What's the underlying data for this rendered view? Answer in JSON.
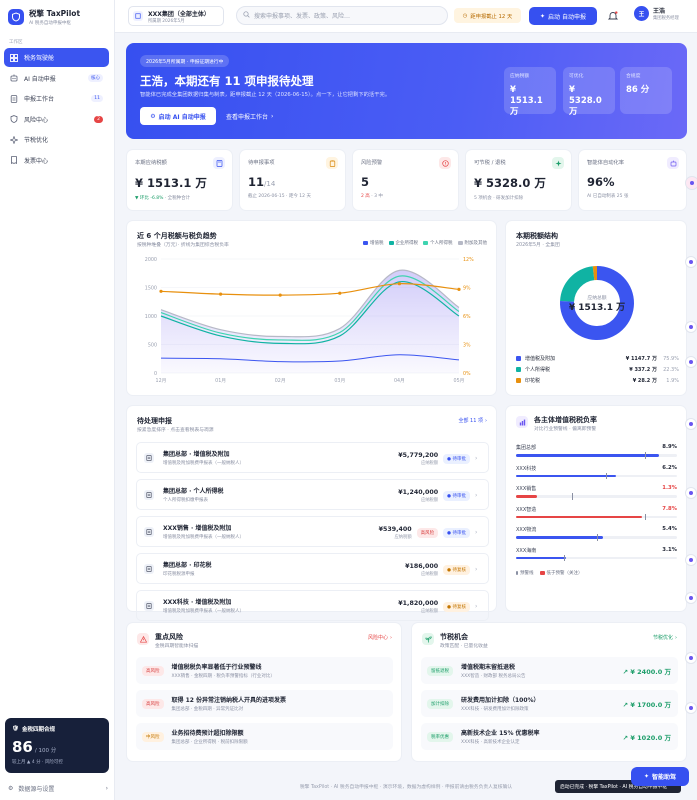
{
  "brand": {
    "name": "税擎 TaxPilot",
    "subtitle": "AI 税务自动申报中枢"
  },
  "sidebar": {
    "section_label": "工作区",
    "items": [
      {
        "label": "税务驾驶舱",
        "badge": ""
      },
      {
        "label": "AI 自动申报",
        "badge": "核心"
      },
      {
        "label": "申报工作台",
        "badge": "11"
      },
      {
        "label": "风险中心",
        "badge": "2"
      },
      {
        "label": "节税优化",
        "badge": ""
      },
      {
        "label": "发票中心",
        "badge": ""
      }
    ],
    "score_card": {
      "title": "金税四期合规",
      "value": "86",
      "unit": "/ 100 分",
      "sub": "较上月 ▲ 4 分 · 风险可控"
    },
    "footer_label": "数据源与设置"
  },
  "topbar": {
    "entity_name": "XXX集团（全部主体）",
    "entity_sub": "所属期 2026年5月",
    "search_placeholder": "搜索申报事项、发票、政策、风险…",
    "deadline": "距申报截止 12 天",
    "auto_button": "启动 自动申报",
    "user_name": "王浩",
    "user_role": "集团税务经理",
    "user_initial": "王"
  },
  "hero": {
    "tag": "2026年5月所属期 · 申报征期进行中",
    "title": "王浩，本期还有 11 项申报待处理",
    "desc": "智能体已完成全集团数据归集与制表，距申报截止 12 天（2026-06-15）。点一下，让它把剩下的活干完。",
    "primary_btn": "启动 AI 自动申报",
    "link": "查看申报工作台",
    "stats": [
      {
        "label": "应纳税额",
        "value": "¥ 1513.1 万"
      },
      {
        "label": "可优化",
        "value": "¥ 5328.0 万"
      },
      {
        "label": "合规度",
        "value": "86 分"
      }
    ]
  },
  "kpis": [
    {
      "label": "本期应纳税额",
      "value": "¥ 1513.1 万",
      "value_small": "",
      "sub_strong": "▼ 环比 -6.8%",
      "sub": " · 全税种合计"
    },
    {
      "label": "待申报事项",
      "value": "11",
      "value_small": "/14",
      "sub_strong": "",
      "sub": "截止 2026-06-15 · 距今 12 天"
    },
    {
      "label": "风险预警",
      "value": "5",
      "value_small": "",
      "sub_strong": "2 高",
      "sub": " · 3 中"
    },
    {
      "label": "可节税 / 退税",
      "value": "¥ 5328.0 万",
      "value_small": "",
      "sub_strong": "",
      "sub": "5 项机会 · 研发加计扣除"
    },
    {
      "label": "智能体自动化率",
      "value": "96%",
      "value_small": "",
      "sub_strong": "",
      "sub": "AI 已自动制表 25 张"
    }
  ],
  "trend": {
    "title": "近 6 个月税额与税负趋势",
    "subtitle": "按税种堆叠（万元）· 折线为集团综合税负率",
    "legend": [
      "增值税",
      "企业所得税",
      "个人所得税",
      "附加及其他"
    ]
  },
  "structure": {
    "title": "本期税额结构",
    "subtitle": "2026年5月 · 全集团",
    "center_label": "应纳总额",
    "center_value": "¥ 1513.1 万",
    "items": [
      {
        "label": "增值税及附加",
        "value": "¥ 1147.7 万",
        "pct": "75.9%"
      },
      {
        "label": "个人所得税",
        "value": "¥ 337.2 万",
        "pct": "22.3%"
      },
      {
        "label": "印花税",
        "value": "¥ 28.2 万",
        "pct": "1.9%"
      }
    ]
  },
  "pending": {
    "title": "待处理申报",
    "subtitle": "按紧急度排序 · 点击查看税表与凋源",
    "link": "全部 11 项",
    "rows": [
      {
        "name": "集团总部 · 增值税及附加",
        "desc": "增值税及附加税费申报表（一般纳税人）",
        "amount": "¥5,779,200",
        "amount_label": "应纳税额",
        "risk": "",
        "status": "● 待审批"
      },
      {
        "name": "集团总部 · 个人所得税",
        "desc": "个人所得税扣缴申报表",
        "amount": "¥1,240,000",
        "amount_label": "应纳税额",
        "risk": "",
        "status": "● 待审批"
      },
      {
        "name": "XXX销售 · 增值税及附加",
        "desc": "增值税及附加税费申报表（一般纳税人）",
        "amount": "¥539,400",
        "amount_label": "应纳税额",
        "risk": "高风险",
        "status": "● 待审批"
      },
      {
        "name": "集团总部 · 印花税",
        "desc": "印花税税源申报",
        "amount": "¥186,000",
        "amount_label": "应纳税额",
        "risk": "",
        "status": "● 待复核"
      },
      {
        "name": "XXX科技 · 增值税及附加",
        "desc": "增值税及附加税费申报表（一般纳税人）",
        "amount": "¥1,820,000",
        "amount_label": "应纳税额",
        "risk": "",
        "status": "● 待复核"
      }
    ]
  },
  "benchmark": {
    "title": "各主体增值税税负率",
    "subtitle": "对比行业预警线 · 偏离即预警",
    "rows": [
      {
        "name": "集团总部",
        "value": "8.9%",
        "fill": 0.89,
        "mark": 0.8,
        "alert": false
      },
      {
        "name": "XXX科技",
        "value": "6.2%",
        "fill": 0.62,
        "mark": 0.56,
        "alert": false
      },
      {
        "name": "XXX销售",
        "value": "1.3%",
        "fill": 0.13,
        "mark": 0.35,
        "alert": true
      },
      {
        "name": "XXX智造",
        "value": "7.8%",
        "fill": 0.78,
        "mark": 0.8,
        "alert": true
      },
      {
        "name": "XXX物流",
        "value": "5.4%",
        "fill": 0.54,
        "mark": 0.5,
        "alert": false
      },
      {
        "name": "XXX海南",
        "value": "3.1%",
        "fill": 0.31,
        "mark": 0.3,
        "alert": false
      }
    ],
    "legend": [
      "预警线",
      "低于预警（关注）"
    ]
  },
  "risks": {
    "title": "重点风险",
    "subtitle": "金税四期智能体扫描",
    "link": "风险中心",
    "rows": [
      {
        "level": "高风险",
        "title": "增值税税负率显著低于行业预警线",
        "desc": "XXX销售 · 金税四期 · 税负率预警指标（行业对比）"
      },
      {
        "level": "高风险",
        "title": "取得 12 份异常注销纳税人开具的进项发票",
        "desc": "集团总部 · 金税四期 · 异常凭证比对"
      },
      {
        "level": "中风险",
        "title": "业务招待费预计超扣除限额",
        "desc": "集团总部 · 企业所得税 · 税前扣除限额"
      }
    ]
  },
  "opportunities": {
    "title": "节税机会",
    "subtitle": "政策匹配 · 已量化收益",
    "link": "节税优化",
    "rows": [
      {
        "tag": "留抵退税",
        "title": "增值税期末留抵退税",
        "desc": "XXX智造 · 财政部 税务总局公告",
        "amount": "↗ ¥ 2400.0 万"
      },
      {
        "tag": "加计扣除",
        "title": "研发费用加计扣除（100%）",
        "desc": "XXX科技 · 研发费用加计扣除政策",
        "amount": "↗ ¥ 1700.0 万"
      },
      {
        "tag": "税率优惠",
        "title": "高新技术企业 15% 优惠税率",
        "desc": "XXX科技 · 高新技术企业认定",
        "amount": "↗ ¥ 1020.0 万"
      }
    ]
  },
  "footer": "税擎 TaxPilot · AI 税务自动申报中枢 · 演示环境，数据为虚构样例 · 申报前请由税务负责人复核确认",
  "toast": "启动已完成 · 税擎 TaxPilot · AI 税务自动申报中枢",
  "smart_button": "智能助驾",
  "colors": {
    "accent": "#3650f0",
    "vat": "#3b55f0",
    "cit": "#10b3a3",
    "iit": "#3fd4b0",
    "other": "#b6b9c6",
    "rate": "#e8900e",
    "danger": "#e64545",
    "success": "#1d9e6a"
  },
  "chart_data": [
    {
      "type": "area",
      "title": "近 6 个月税额与税负趋势",
      "x": [
        "12月",
        "01月",
        "02月",
        "03月",
        "04月",
        "05月"
      ],
      "ylim": [
        0,
        2000
      ],
      "y_ticks": [
        "2000",
        "1500",
        "1000",
        "500",
        "0"
      ],
      "y2lim": [
        0,
        12
      ],
      "y2_ticks": [
        "12%",
        "9%",
        "6%",
        "3%",
        "0%"
      ],
      "series": [
        {
          "name": "增值税",
          "values": [
            260,
            250,
            200,
            210,
            320,
            230
          ]
        },
        {
          "name": "企业所得税",
          "values": [
            1000,
            650,
            520,
            650,
            1600,
            1000
          ]
        },
        {
          "name": "个人所得税",
          "values": [
            1060,
            700,
            580,
            710,
            1700,
            1080
          ]
        },
        {
          "name": "附加及其他",
          "values": [
            1110,
            760,
            640,
            780,
            1800,
            1150
          ]
        },
        {
          "name": "综合税负率",
          "axis": "right",
          "values": [
            8.6,
            8.3,
            8.2,
            8.4,
            9.4,
            8.8
          ]
        }
      ]
    },
    {
      "type": "pie",
      "title": "本期税额结构",
      "categories": [
        "增值税及附加",
        "个人所得税",
        "印花税"
      ],
      "values": [
        1147.7,
        337.2,
        28.2
      ]
    }
  ]
}
